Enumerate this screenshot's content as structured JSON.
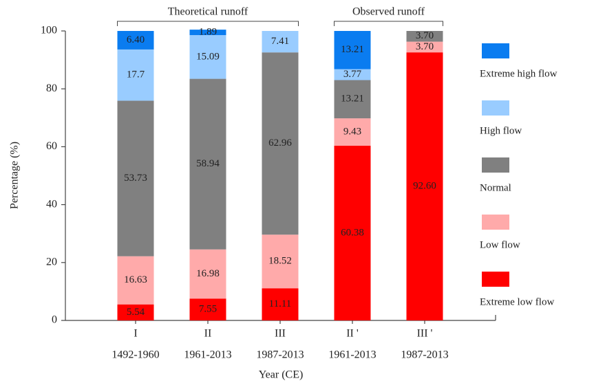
{
  "chart_data": {
    "type": "stacked_bar",
    "ylabel": "Percentage (%)",
    "xlabel": "Year (CE)",
    "categories": [
      "I",
      "II",
      "III",
      "II '",
      "III '"
    ],
    "periods": [
      "1492-1960",
      "1961-2013",
      "1987-2013",
      "1961-2013",
      "1987-2013"
    ],
    "groups": [
      {
        "label": "Theoretical runoff",
        "categories": [
          "I",
          "II",
          "III"
        ]
      },
      {
        "label": "Observed runoff",
        "categories": [
          "II '",
          "III '"
        ]
      }
    ],
    "ylim": [
      0,
      100
    ],
    "yticks": [
      0,
      20,
      40,
      60,
      80,
      100
    ],
    "series": [
      {
        "name": "Extreme low flow",
        "color": "#ff0000",
        "values": [
          5.54,
          7.55,
          11.11,
          60.38,
          92.6
        ],
        "value_labels": [
          "5.54",
          "7.55",
          "11.11",
          "60.38",
          "92.60"
        ]
      },
      {
        "name": "Low flow",
        "color": "#ffaaaa",
        "values": [
          16.63,
          16.98,
          18.52,
          9.43,
          3.7
        ],
        "value_labels": [
          "16.63",
          "16.98",
          "18.52",
          "9.43",
          "3.70"
        ]
      },
      {
        "name": "Normal",
        "color": "#808080",
        "values": [
          53.73,
          58.94,
          62.96,
          13.21,
          3.7
        ],
        "value_labels": [
          "53.73",
          "58.94",
          "62.96",
          "13.21",
          "3.70"
        ]
      },
      {
        "name": "High flow",
        "color": "#99ccff",
        "values": [
          17.7,
          15.09,
          7.41,
          3.77,
          null
        ]
      },
      {
        "name": "Extreme high flow",
        "color": "#0a7cf0",
        "values": [
          6.4,
          1.89,
          null,
          13.21,
          null
        ],
        "value_labels": [
          "6.40",
          "1.89",
          null,
          "13.21",
          null
        ]
      }
    ]
  }
}
